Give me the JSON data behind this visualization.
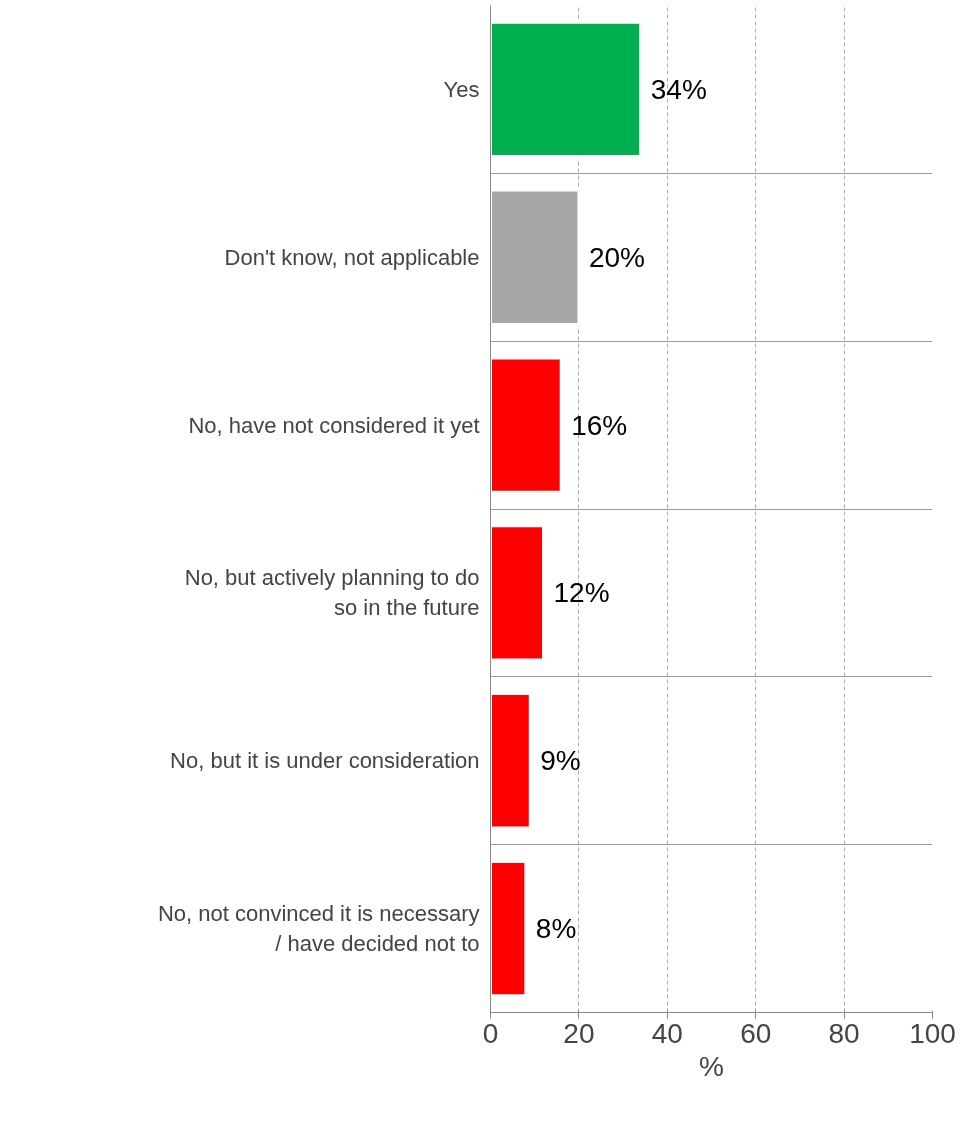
{
  "chart_data": {
    "type": "bar",
    "orientation": "horizontal",
    "xlabel": "%",
    "categories": [
      "Yes",
      "Don't know, not applicable",
      "No, have not considered it yet",
      "No, but actively planning to do so in the future",
      "No, but it is under consideration",
      "No, not convinced it is necessary / have decided not to"
    ],
    "values": [
      34,
      20,
      16,
      12,
      9,
      8
    ],
    "colors": [
      "#00b050",
      "#a6a6a6",
      "#ff0000",
      "#ff0000",
      "#ff0000",
      "#ff0000"
    ],
    "value_labels": [
      "34%",
      "20%",
      "16%",
      "12%",
      "9%",
      "8%"
    ],
    "xlim": [
      0,
      100
    ],
    "xticks": [
      0,
      20,
      40,
      60,
      80,
      100
    ],
    "grid": true
  }
}
